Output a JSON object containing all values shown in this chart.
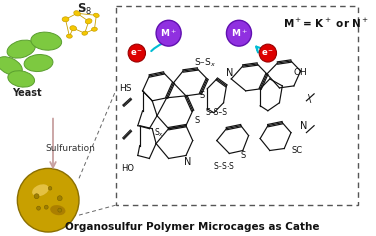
{
  "bg_color": "#ffffff",
  "dashed_box_color": "#555555",
  "m_plus_color": "#8B30FF",
  "e_minus_color": "#cc0000",
  "arrow_color": "#00bcd4",
  "structure_color": "#111111",
  "bottom_text": "Organosulfur Polymer Microcages as Cathe",
  "top_right_text": "M⁺= K⁺ or N...",
  "yeast_color": "#7dc940",
  "yeast_edge": "#5a9e2f",
  "sulfur_color": "#f5c800",
  "sulfur_edge": "#c9a000",
  "sphere_color": "#c8a000",
  "sphere_edge": "#8b6f00",
  "arrow_pink": "#d4a0a0",
  "yeast_cells": [
    [
      22,
      48,
      30,
      17,
      -15
    ],
    [
      48,
      40,
      32,
      18,
      5
    ],
    [
      10,
      65,
      28,
      16,
      25
    ],
    [
      40,
      62,
      30,
      17,
      -5
    ],
    [
      22,
      78,
      28,
      16,
      10
    ]
  ],
  "s8_molecules": [
    [
      68,
      18,
      7,
      5,
      0
    ],
    [
      80,
      12,
      7,
      5,
      20
    ],
    [
      92,
      20,
      7,
      5,
      -15
    ],
    [
      76,
      27,
      7,
      5,
      10
    ],
    [
      88,
      32,
      6,
      4,
      -10
    ],
    [
      72,
      35,
      6,
      4,
      5
    ],
    [
      100,
      14,
      6,
      4,
      15
    ],
    [
      98,
      28,
      6,
      4,
      -5
    ]
  ]
}
